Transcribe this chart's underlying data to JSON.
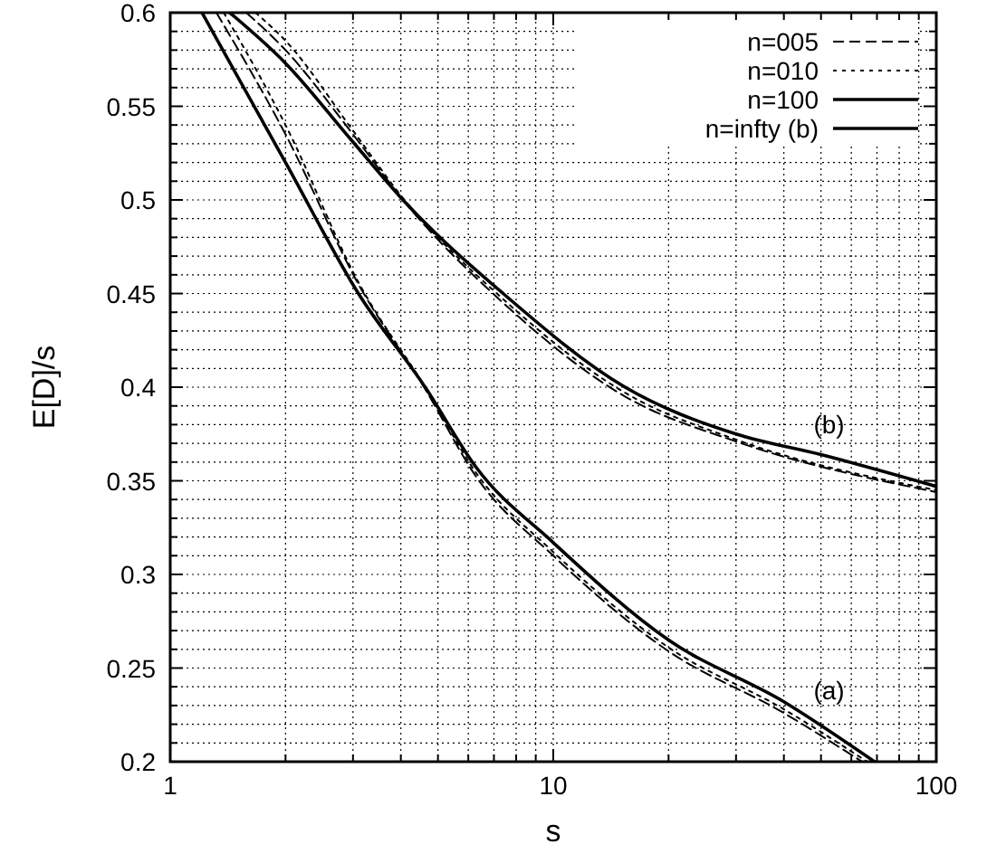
{
  "chart_data": {
    "type": "line",
    "xlabel": "s",
    "ylabel": "E[D]/s",
    "log": "x",
    "grid": true,
    "legend": "top right",
    "xlim": [
      1,
      100
    ],
    "ylim": [
      0.2,
      0.6
    ],
    "xticks": [
      1,
      {
        "value": 2,
        "label": null
      },
      {
        "value": 3,
        "label": null
      },
      {
        "value": 4,
        "label": null
      },
      {
        "value": 5,
        "label": null
      },
      {
        "value": 6,
        "label": null
      },
      {
        "value": 7,
        "label": null
      },
      {
        "value": 8,
        "label": null
      },
      {
        "value": 9,
        "label": null
      },
      10,
      {
        "value": 20,
        "label": null
      },
      {
        "value": 30,
        "label": null
      },
      {
        "value": 40,
        "label": null
      },
      {
        "value": 50,
        "label": null
      },
      {
        "value": 60,
        "label": null
      },
      {
        "value": 70,
        "label": null
      },
      {
        "value": 80,
        "label": null
      },
      {
        "value": 90,
        "label": null
      },
      100
    ],
    "yticks": [
      0.2,
      {
        "value": 0.21,
        "label": null
      },
      {
        "value": 0.22,
        "label": null
      },
      {
        "value": 0.23,
        "label": null
      },
      {
        "value": 0.24,
        "label": null
      },
      0.25,
      {
        "value": 0.26,
        "label": null
      },
      {
        "value": 0.27,
        "label": null
      },
      {
        "value": 0.28,
        "label": null
      },
      {
        "value": 0.29,
        "label": null
      },
      0.3,
      {
        "value": 0.31,
        "label": null
      },
      {
        "value": 0.32,
        "label": null
      },
      {
        "value": 0.33,
        "label": null
      },
      {
        "value": 0.34,
        "label": null
      },
      0.35,
      {
        "value": 0.36,
        "label": null
      },
      {
        "value": 0.37,
        "label": null
      },
      {
        "value": 0.38,
        "label": null
      },
      {
        "value": 0.39,
        "label": null
      },
      0.4,
      {
        "value": 0.41,
        "label": null
      },
      {
        "value": 0.42,
        "label": null
      },
      {
        "value": 0.43,
        "label": null
      },
      {
        "value": 0.44,
        "label": null
      },
      0.45,
      {
        "value": 0.46,
        "label": null
      },
      {
        "value": 0.47,
        "label": null
      },
      {
        "value": 0.48,
        "label": null
      },
      {
        "value": 0.49,
        "label": null
      },
      0.5,
      {
        "value": 0.51,
        "label": null
      },
      {
        "value": 0.52,
        "label": null
      },
      {
        "value": 0.53,
        "label": null
      },
      {
        "value": 0.54,
        "label": null
      },
      0.55,
      {
        "value": 0.56,
        "label": null
      },
      {
        "value": 0.57,
        "label": null
      },
      {
        "value": 0.58,
        "label": null
      },
      {
        "value": 0.59,
        "label": null
      },
      0.6
    ],
    "series": [
      {
        "name": "n=005",
        "color": "#000000",
        "line_style": "dashed",
        "x": [
          1.32,
          2,
          3.1,
          4.63,
          6.3,
          10,
          20,
          40,
          64
        ],
        "values": [
          0.6,
          0.535,
          0.455,
          0.399,
          0.352,
          0.31,
          0.259,
          0.226,
          0.2
        ]
      },
      {
        "name": "n=010",
        "color": "#000000",
        "line_style": "dotted",
        "x": [
          1.38,
          2,
          3.1,
          4.63,
          6.3,
          10,
          20,
          40,
          66
        ],
        "values": [
          0.6,
          0.54,
          0.456,
          0.4,
          0.354,
          0.312,
          0.261,
          0.228,
          0.2
        ]
      },
      {
        "name": "n=100",
        "color": "#000000",
        "line_style": "solid",
        "x": [
          1.21,
          2,
          3.1,
          4.63,
          6.3,
          10,
          20,
          40,
          69
        ],
        "values": [
          0.6,
          0.52,
          0.45,
          0.4,
          0.357,
          0.317,
          0.265,
          0.232,
          0.2
        ]
      },
      {
        "name": "n=infty (b)",
        "color": "#000000",
        "line_style": "solid",
        "x": [
          1.43,
          2,
          2.97,
          4.05,
          7.4,
          15.4,
          30,
          50,
          100
        ],
        "values": [
          0.6,
          0.573,
          0.532,
          0.5,
          0.45,
          0.4,
          0.375,
          0.364,
          0.347
        ]
      },
      {
        "color": "#000000",
        "line_style": "dashed",
        "x": [
          1.58,
          2,
          3,
          4.05,
          7.4,
          15.4,
          30,
          100
        ],
        "values": [
          0.6,
          0.58,
          0.535,
          0.5,
          0.445,
          0.395,
          0.371,
          0.344
        ]
      },
      {
        "color": "#000000",
        "line_style": "dotted",
        "x": [
          1.67,
          2,
          3,
          4.05,
          7.4,
          15.4,
          30,
          100
        ],
        "values": [
          0.6,
          0.585,
          0.537,
          0.501,
          0.447,
          0.397,
          0.372,
          0.345
        ]
      }
    ],
    "annotations": [
      "(a)",
      "(b)"
    ]
  }
}
